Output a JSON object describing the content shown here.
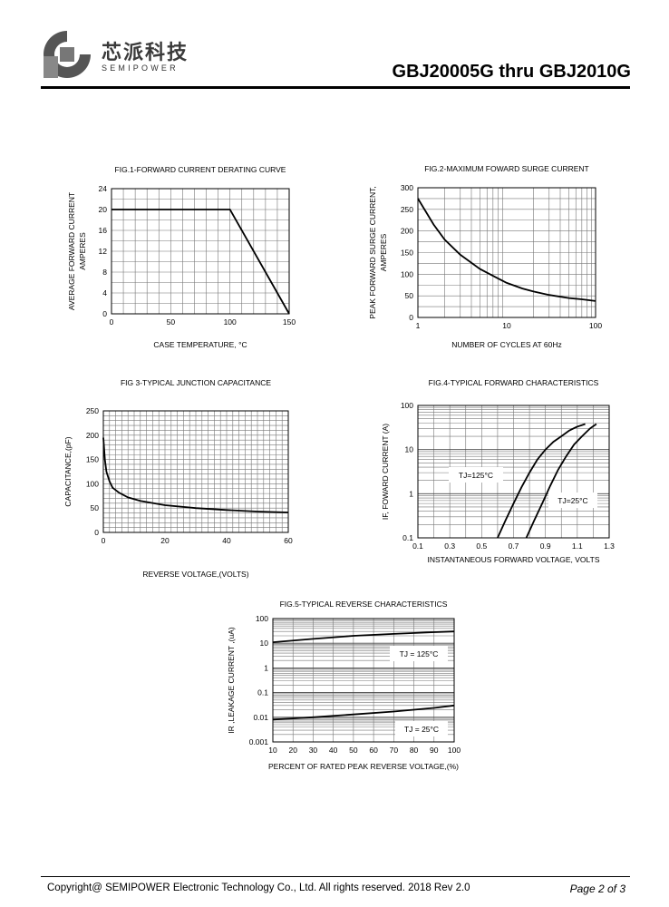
{
  "header": {
    "logo_cn": "芯派科技",
    "logo_en": "SEMIPOWER",
    "title": "GBJ20005G thru GBJ2010G"
  },
  "footer": {
    "copyright": "Copyright@ SEMIPOWER Electronic Technology Co., Ltd.  All rights reserved.  2018  Rev  2.0",
    "page": "Page  2  of  3"
  },
  "chart_data": [
    {
      "id": "fig1",
      "type": "line",
      "title": "FIG.1-FORWARD CURRENT DERATING CURVE",
      "xlabel": "CASE TEMPERATURE, °C",
      "ylabel": [
        "AVERAGE FORWARD CURRENT",
        "AMPERES"
      ],
      "xlim": [
        0,
        150
      ],
      "ylim": [
        0,
        24
      ],
      "xticks": [
        0,
        50,
        100,
        150
      ],
      "yticks": [
        0,
        4,
        8,
        12,
        16,
        20,
        24
      ],
      "series": [
        {
          "name": "derating",
          "x": [
            0,
            100,
            150
          ],
          "y": [
            20,
            20,
            0
          ]
        }
      ]
    },
    {
      "id": "fig2",
      "type": "line",
      "title": "FIG.2-MAXIMUM FOWARD  SURGE CURRENT",
      "xlabel": "NUMBER OF CYCLES AT 60Hz",
      "ylabel": [
        "PEAK FORWARD SURGE CURRENT,",
        "AMPERES"
      ],
      "xscale": "log",
      "xlim": [
        1,
        100
      ],
      "ylim": [
        0,
        300
      ],
      "xticks": [
        1,
        10,
        100
      ],
      "yticks": [
        0,
        50,
        100,
        150,
        200,
        250,
        300
      ],
      "series": [
        {
          "name": "surge",
          "x": [
            1,
            1.5,
            2,
            3,
            5,
            8,
            10,
            15,
            20,
            30,
            50,
            70,
            100
          ],
          "y": [
            275,
            215,
            180,
            145,
            112,
            90,
            80,
            67,
            60,
            52,
            45,
            42,
            38
          ]
        }
      ]
    },
    {
      "id": "fig3",
      "type": "line",
      "title": "FIG 3-TYPICAL JUNCTION CAPACITANCE",
      "xlabel": "REVERSE VOLTAGE,(VOLTS)",
      "ylabel": [
        "CAPACITANCE,(pF)"
      ],
      "xlim": [
        0,
        60
      ],
      "ylim": [
        0,
        250
      ],
      "xticks": [
        0,
        20,
        40,
        60
      ],
      "yticks": [
        0,
        50,
        100,
        150,
        200,
        250
      ],
      "series": [
        {
          "name": "capacitance",
          "x": [
            0,
            0.5,
            1,
            2,
            3,
            5,
            8,
            12,
            20,
            30,
            40,
            50,
            60
          ],
          "y": [
            195,
            150,
            125,
            105,
            92,
            82,
            72,
            65,
            56,
            50,
            46,
            43,
            41
          ]
        }
      ]
    },
    {
      "id": "fig4",
      "type": "line",
      "title": "FIG.4-TYPICAL FORWARD CHARACTERISTICS",
      "xlabel": "INSTANTANEOUS FORWARD VOLTAGE, VOLTS",
      "ylabel": [
        "IF, FOWARD CURRENT (A)"
      ],
      "yscale": "log",
      "xlim": [
        0.1,
        1.3
      ],
      "ylim": [
        0.1,
        100
      ],
      "xticks": [
        0.1,
        0.3,
        0.5,
        0.7,
        0.9,
        1.1,
        1.3
      ],
      "yticks": [
        0.1,
        1,
        10,
        100
      ],
      "annotations": [
        "TJ=125°C",
        "TJ=25°C"
      ],
      "series": [
        {
          "name": "TJ=125°C",
          "x": [
            0.6,
            0.65,
            0.7,
            0.75,
            0.8,
            0.85,
            0.9,
            0.95,
            1.0,
            1.05,
            1.1,
            1.15
          ],
          "y": [
            0.1,
            0.25,
            0.6,
            1.4,
            3,
            6,
            10,
            15,
            20,
            27,
            33,
            38
          ]
        },
        {
          "name": "TJ=25°C",
          "x": [
            0.78,
            0.83,
            0.88,
            0.93,
            0.98,
            1.03,
            1.08,
            1.13,
            1.18,
            1.22
          ],
          "y": [
            0.1,
            0.25,
            0.6,
            1.5,
            3.5,
            7,
            13,
            20,
            30,
            38
          ]
        }
      ]
    },
    {
      "id": "fig5",
      "type": "line",
      "title": "FIG.5-TYPICAL REVERSE CHARACTERISTICS",
      "xlabel": "PERCENT OF RATED PEAK REVERSE VOLTAGE,(%)",
      "ylabel": [
        "IR ,LEAKAGE  CURRENT ,(uA)"
      ],
      "yscale": "log",
      "xlim": [
        10,
        100
      ],
      "ylim": [
        0.001,
        100
      ],
      "xticks": [
        10,
        20,
        30,
        40,
        50,
        60,
        70,
        80,
        90,
        100
      ],
      "yticks": [
        0.001,
        0.01,
        0.1,
        1,
        10,
        100
      ],
      "annotations": [
        "TJ = 125°C",
        "TJ = 25°C"
      ],
      "series": [
        {
          "name": "TJ = 125°C",
          "x": [
            10,
            30,
            50,
            70,
            90,
            100
          ],
          "y": [
            11,
            15,
            20,
            24,
            28,
            30
          ]
        },
        {
          "name": "TJ = 25°C",
          "x": [
            10,
            30,
            50,
            70,
            90,
            100
          ],
          "y": [
            0.008,
            0.01,
            0.013,
            0.017,
            0.024,
            0.03
          ]
        }
      ]
    }
  ]
}
